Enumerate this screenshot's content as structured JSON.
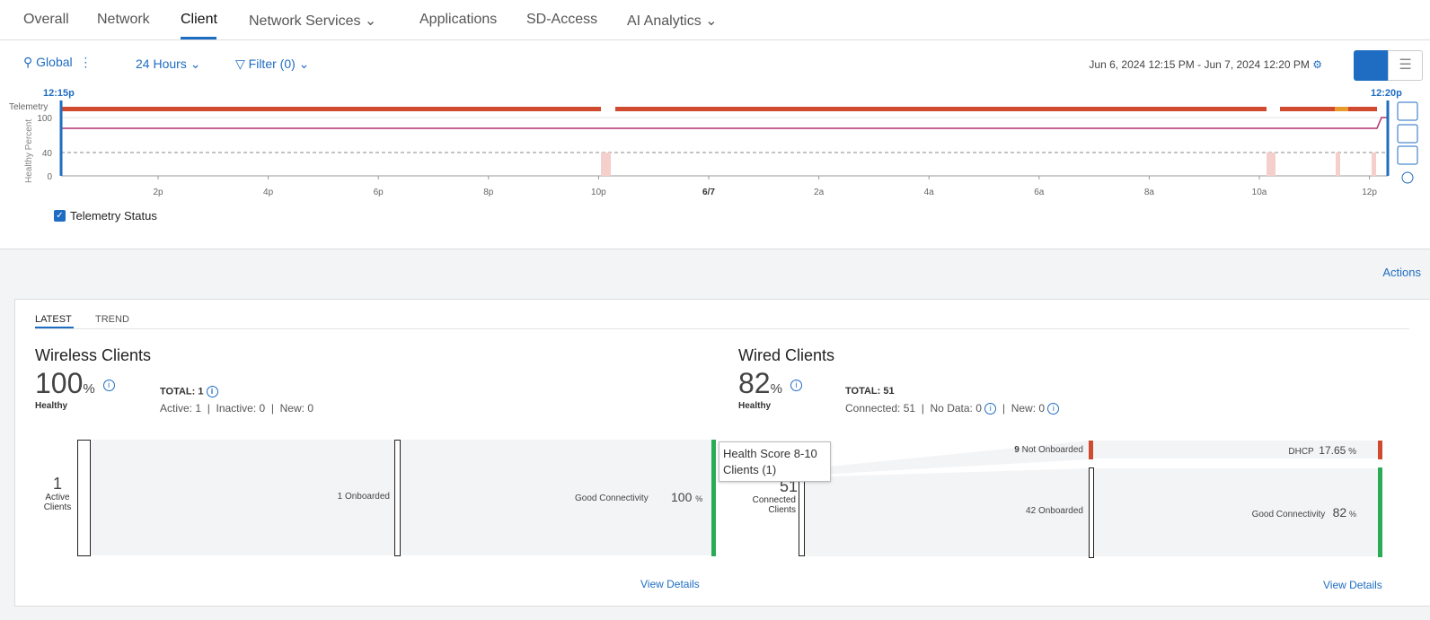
{
  "nav": {
    "tabs": [
      "Overall",
      "Network",
      "Client",
      "Network Services",
      "Applications",
      "SD-Access",
      "AI Analytics"
    ]
  },
  "toolbar": {
    "location": "Global",
    "time_range": "24 Hours",
    "filter": "Filter (0)",
    "date_range": "Jun 6, 2024 12:15 PM - Jun 7, 2024 12:20 PM"
  },
  "timeline": {
    "start": "12:15p",
    "end": "12:20p",
    "telemetry": "Telemetry",
    "axis_title": "Healthy Percent",
    "yticks": [
      "100",
      "40",
      "0"
    ],
    "xticks": [
      "2p",
      "4p",
      "6p",
      "8p",
      "10p",
      "6/7",
      "2a",
      "4a",
      "6a",
      "8a",
      "10a",
      "12p"
    ],
    "legend": "Telemetry Status"
  },
  "actions": "Actions",
  "panel": {
    "tabs": [
      "LATEST",
      "TREND"
    ],
    "wireless": {
      "title": "Wireless Clients",
      "score": "100",
      "unit": "%",
      "status": "Healthy",
      "total": "TOTAL: 1",
      "stats": [
        "Active: 1",
        "Inactive: 0",
        "New: 0"
      ],
      "flow": {
        "source_count": "1",
        "source_label": "Active Clients",
        "onboarded": "1 Onboarded",
        "connectivity": "Good Connectivity",
        "connectivity_value": "100",
        "connectivity_unit": "%"
      },
      "link": "View Details"
    },
    "wired": {
      "title": "Wired Clients",
      "score": "82",
      "unit": "%",
      "status": "Healthy",
      "total": "TOTAL: 51",
      "stats": [
        "Connected: 51",
        "No Data: 0",
        "New: 0"
      ],
      "flow": {
        "source_count": "51",
        "source_label": "Connected Clients",
        "not_onboarded_count": "9",
        "not_onboarded": "Not Onboarded",
        "onboarded": "42 Onboarded",
        "dhcp": "DHCP",
        "dhcp_value": "17.65",
        "dhcp_unit": "%",
        "connectivity": "Good Connectivity",
        "connectivity_value": "82",
        "connectivity_unit": "%"
      },
      "link": "View Details"
    },
    "tooltip": {
      "title": "Health Score 8-10",
      "clients": "Clients (1)"
    }
  }
}
